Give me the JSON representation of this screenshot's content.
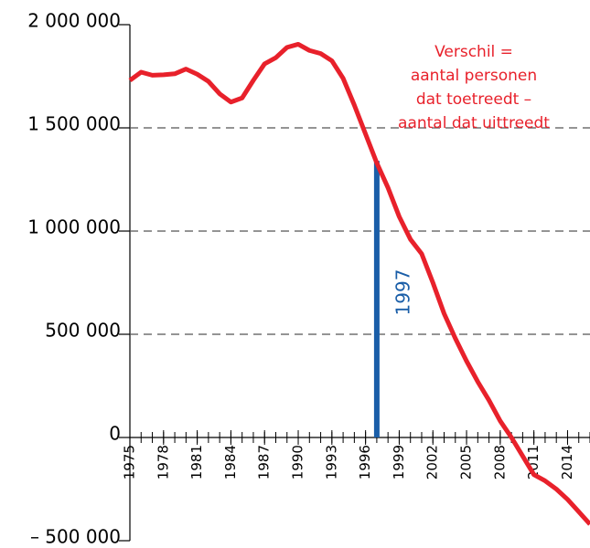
{
  "chart_data": {
    "type": "line",
    "x": [
      1975,
      1976,
      1977,
      1978,
      1979,
      1980,
      1981,
      1982,
      1983,
      1984,
      1985,
      1986,
      1987,
      1988,
      1989,
      1990,
      1991,
      1992,
      1993,
      1994,
      1995,
      1996,
      1997,
      1998,
      1999,
      2000,
      2001,
      2002,
      2003,
      2004,
      2005,
      2006,
      2007,
      2008,
      2009,
      2010,
      2011,
      2012,
      2013,
      2014,
      2015,
      2016
    ],
    "series": [
      {
        "color": "#e8212b",
        "values": [
          1730000,
          1770000,
          1755000,
          1757000,
          1762000,
          1785000,
          1760000,
          1725000,
          1665000,
          1625000,
          1645000,
          1730000,
          1810000,
          1840000,
          1890000,
          1905000,
          1875000,
          1860000,
          1825000,
          1740000,
          1610000,
          1470000,
          1330000,
          1210000,
          1070000,
          960000,
          890000,
          750000,
          600000,
          480000,
          370000,
          270000,
          180000,
          80000,
          0,
          -90000,
          -180000,
          -210000,
          -250000,
          -300000,
          -360000,
          -420000
        ]
      }
    ],
    "xlim": [
      1975,
      2016
    ],
    "xticks": [
      1975,
      1978,
      1981,
      1984,
      1987,
      1990,
      1993,
      1996,
      1999,
      2002,
      2005,
      2008,
      2011,
      2014
    ],
    "ylim": [
      -500000,
      2000000
    ],
    "yticks": [
      {
        "value": -500000,
        "label": "– 500 000"
      },
      0,
      {
        "value": 500000,
        "label": "500 000"
      },
      {
        "value": 1000000,
        "label": "1 000 000"
      },
      {
        "value": 1500000,
        "label": "1 500 000"
      },
      {
        "value": 2000000,
        "label": "2 000 000"
      }
    ],
    "grid": true,
    "marker": {
      "x": 1997,
      "value": 1340000,
      "label": "1997",
      "color": "#1a5ea8"
    },
    "annotation": [
      "Verschil =",
      "aantal personen",
      "dat toetreedt –",
      "aantal dat uittreedt"
    ]
  }
}
